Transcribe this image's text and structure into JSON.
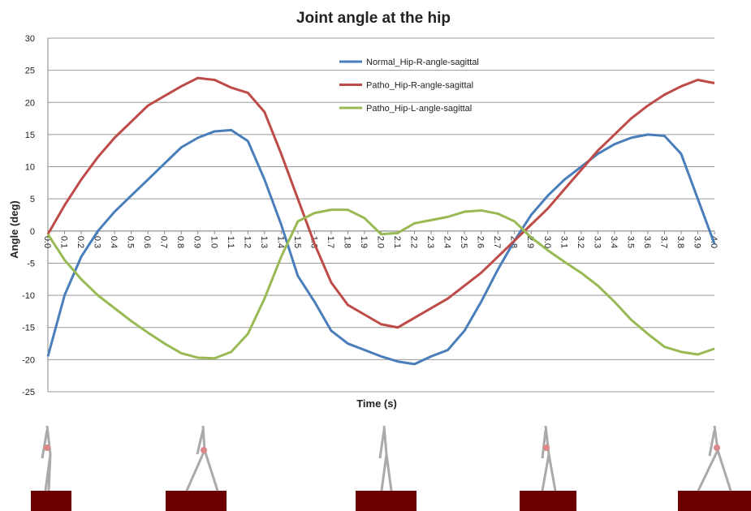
{
  "chart_data": {
    "type": "line",
    "title": "Joint angle at the hip",
    "x_label": "Time (s)",
    "y_label": "Angle (deg)",
    "x": [
      0,
      0.1,
      0.2,
      0.3,
      0.4,
      0.5,
      0.6,
      0.7,
      0.8,
      0.9,
      1.0,
      1.1,
      1.2,
      1.3,
      1.4,
      1.5,
      1.6,
      1.7,
      1.8,
      1.9,
      2.0,
      2.1,
      2.2,
      2.3,
      2.4,
      2.5,
      2.6,
      2.7,
      2.8,
      2.9,
      3.0,
      3.1,
      3.2,
      3.3,
      3.4,
      3.5,
      3.6,
      3.7,
      3.8,
      3.9,
      4.0
    ],
    "series": [
      {
        "name": "Normal_Hip-R-angle-sagittal",
        "color": "#4a7ebb",
        "values": [
          -19.5,
          -10,
          -4,
          0,
          3,
          5.5,
          8,
          10.5,
          13,
          14.5,
          15.5,
          15.7,
          14,
          8,
          1,
          -7,
          -11,
          -15.5,
          -17.5,
          -18.5,
          -19.5,
          -20.3,
          -20.7,
          -19.5,
          -18.5,
          -15.5,
          -11,
          -6,
          -1.5,
          2.5,
          5.5,
          8,
          10,
          12,
          13.5,
          14.5,
          15,
          14.8,
          12,
          5,
          -2
        ]
      },
      {
        "name": "Patho_Hip-R-angle-sagittal",
        "color": "#be4b48",
        "values": [
          -0.5,
          4,
          8,
          11.5,
          14.5,
          17,
          19.5,
          21,
          22.5,
          23.8,
          23.5,
          22.3,
          21.5,
          18.5,
          12,
          5,
          -2,
          -8,
          -11.5,
          -13,
          -14.5,
          -15,
          -13.5,
          -12,
          -10.5,
          -8.5,
          -6.5,
          -4,
          -1.5,
          1,
          3.5,
          6.5,
          9.5,
          12.5,
          15,
          17.5,
          19.5,
          21.2,
          22.5,
          23.5,
          23
        ]
      },
      {
        "name": "Patho_Hip-L-angle-sagittal",
        "color": "#98b954",
        "values": [
          -0.5,
          -4.5,
          -7.5,
          -10,
          -12,
          -14,
          -15.8,
          -17.5,
          -19,
          -19.7,
          -19.8,
          -18.8,
          -16,
          -10.5,
          -4,
          1.5,
          2.8,
          3.3,
          3.3,
          2,
          -0.5,
          -0.3,
          1.2,
          1.7,
          2.2,
          3,
          3.2,
          2.7,
          1.5,
          -1,
          -3,
          -4.8,
          -6.5,
          -8.5,
          -11,
          -13.8,
          -16,
          -18,
          -18.8,
          -19.2,
          -18.3
        ]
      }
    ],
    "xlim": [
      0,
      4
    ],
    "ylim": [
      -25,
      30
    ],
    "xticks": [
      {
        "value": 0,
        "label": "0.0"
      },
      0.1,
      0.2,
      0.3,
      0.4,
      0.5,
      0.6,
      0.7,
      0.8,
      0.9,
      {
        "value": 1,
        "label": "1.0"
      },
      1.1,
      1.2,
      1.3,
      1.4,
      1.5,
      1.6,
      1.7,
      1.8,
      1.9,
      {
        "value": 2,
        "label": "2.0"
      },
      2.1,
      2.2,
      2.3,
      2.4,
      2.5,
      2.6,
      2.7,
      2.8,
      2.9,
      {
        "value": 3,
        "label": "3.0"
      },
      3.1,
      3.2,
      3.3,
      3.4,
      3.5,
      3.6,
      3.7,
      3.8,
      3.9,
      {
        "value": 4,
        "label": "4.0"
      }
    ],
    "yticks": [
      -25,
      -20,
      -15,
      -10,
      -5,
      0,
      5,
      10,
      15,
      20,
      25,
      30
    ],
    "grid": true
  }
}
